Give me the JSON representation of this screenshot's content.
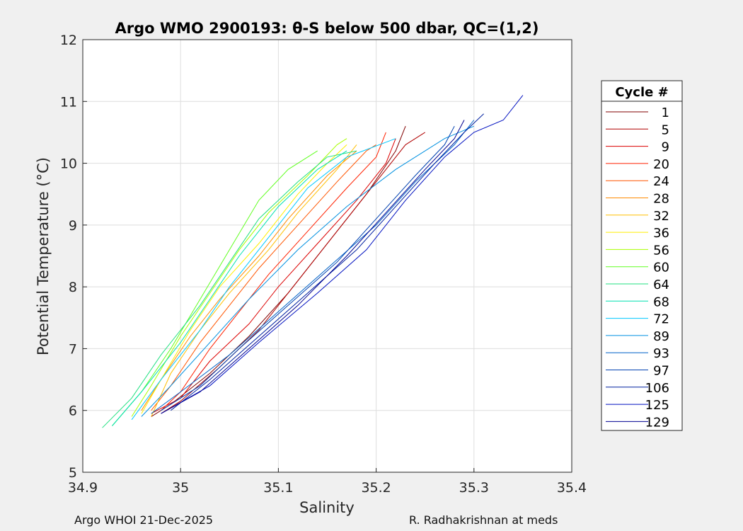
{
  "chart_data": {
    "type": "line",
    "title": "Argo WMO 2900193: θ-S below 500 dbar,  QC=(1,2)",
    "xlabel": "Salinity",
    "ylabel": "Potential Temperature (°C)",
    "xlim": [
      34.9,
      35.4
    ],
    "ylim": [
      5,
      12
    ],
    "xticks": [
      34.9,
      35.0,
      35.1,
      35.2,
      35.3,
      35.4
    ],
    "xtick_labels": [
      "34.9",
      "35",
      "35.1",
      "35.2",
      "35.3",
      "35.4"
    ],
    "yticks": [
      5,
      6,
      7,
      8,
      9,
      10,
      11,
      12
    ],
    "ytick_labels": [
      "5",
      "6",
      "7",
      "8",
      "9",
      "10",
      "11",
      "12"
    ],
    "grid": true,
    "legend_title": "Cycle #",
    "legend_position": "outside-right",
    "series": [
      {
        "name": "1",
        "color": "#800000",
        "points": [
          [
            34.97,
            5.9
          ],
          [
            34.99,
            6.1
          ],
          [
            35.03,
            6.6
          ],
          [
            35.07,
            7.2
          ],
          [
            35.11,
            7.9
          ],
          [
            35.15,
            8.7
          ],
          [
            35.19,
            9.5
          ],
          [
            35.22,
            10.2
          ],
          [
            35.23,
            10.6
          ]
        ]
      },
      {
        "name": "5",
        "color": "#b00000",
        "points": [
          [
            34.98,
            5.95
          ],
          [
            35.0,
            6.15
          ],
          [
            35.04,
            6.7
          ],
          [
            35.08,
            7.3
          ],
          [
            35.12,
            8.1
          ],
          [
            35.16,
            8.9
          ],
          [
            35.2,
            9.7
          ],
          [
            35.23,
            10.3
          ],
          [
            35.25,
            10.5
          ]
        ]
      },
      {
        "name": "9",
        "color": "#dc0000",
        "points": [
          [
            34.97,
            5.95
          ],
          [
            35.0,
            6.2
          ],
          [
            35.03,
            6.8
          ],
          [
            35.07,
            7.4
          ],
          [
            35.1,
            8.0
          ],
          [
            35.14,
            8.7
          ],
          [
            35.18,
            9.4
          ],
          [
            35.21,
            10.0
          ],
          [
            35.22,
            10.4
          ]
        ]
      },
      {
        "name": "20",
        "color": "#ff2000",
        "points": [
          [
            34.98,
            6.0
          ],
          [
            35.0,
            6.3
          ],
          [
            35.03,
            7.0
          ],
          [
            35.06,
            7.6
          ],
          [
            35.09,
            8.2
          ],
          [
            35.13,
            8.9
          ],
          [
            35.17,
            9.6
          ],
          [
            35.2,
            10.1
          ],
          [
            35.21,
            10.5
          ]
        ]
      },
      {
        "name": "24",
        "color": "#ff5500",
        "points": [
          [
            34.97,
            6.0
          ],
          [
            34.99,
            6.4
          ],
          [
            35.02,
            7.1
          ],
          [
            35.05,
            7.7
          ],
          [
            35.08,
            8.3
          ],
          [
            35.12,
            9.0
          ],
          [
            35.16,
            9.7
          ],
          [
            35.19,
            10.2
          ],
          [
            35.2,
            10.3
          ]
        ]
      },
      {
        "name": "28",
        "color": "#ff8a00",
        "points": [
          [
            34.96,
            6.0
          ],
          [
            34.98,
            6.5
          ],
          [
            35.01,
            7.2
          ],
          [
            35.04,
            7.8
          ],
          [
            35.08,
            8.5
          ],
          [
            35.11,
            9.1
          ],
          [
            35.15,
            9.8
          ],
          [
            35.18,
            10.2
          ]
        ]
      },
      {
        "name": "32",
        "color": "#ffbf00",
        "points": [
          [
            34.97,
            5.9
          ],
          [
            34.99,
            6.6
          ],
          [
            35.02,
            7.3
          ],
          [
            35.05,
            7.9
          ],
          [
            35.09,
            8.6
          ],
          [
            35.12,
            9.2
          ],
          [
            35.16,
            9.9
          ],
          [
            35.18,
            10.3
          ]
        ]
      },
      {
        "name": "36",
        "color": "#ffef00",
        "points": [
          [
            34.96,
            5.95
          ],
          [
            34.98,
            6.5
          ],
          [
            35.01,
            7.3
          ],
          [
            35.04,
            8.0
          ],
          [
            35.08,
            8.7
          ],
          [
            35.12,
            9.5
          ],
          [
            35.15,
            10.0
          ],
          [
            35.17,
            10.3
          ]
        ]
      },
      {
        "name": "56",
        "color": "#a8ff00",
        "points": [
          [
            34.95,
            5.9
          ],
          [
            34.97,
            6.4
          ],
          [
            35.0,
            7.2
          ],
          [
            35.03,
            7.9
          ],
          [
            35.06,
            8.6
          ],
          [
            35.09,
            9.2
          ],
          [
            35.13,
            9.8
          ],
          [
            35.16,
            10.3
          ],
          [
            35.17,
            10.4
          ]
        ]
      },
      {
        "name": "60",
        "color": "#60ff20",
        "points": [
          [
            34.93,
            5.75
          ],
          [
            34.96,
            6.3
          ],
          [
            34.99,
            7.0
          ],
          [
            35.02,
            7.8
          ],
          [
            35.05,
            8.6
          ],
          [
            35.08,
            9.4
          ],
          [
            35.11,
            9.9
          ],
          [
            35.14,
            10.2
          ]
        ]
      },
      {
        "name": "64",
        "color": "#20e080",
        "points": [
          [
            34.92,
            5.72
          ],
          [
            34.95,
            6.2
          ],
          [
            34.98,
            6.9
          ],
          [
            35.02,
            7.7
          ],
          [
            35.05,
            8.4
          ],
          [
            35.08,
            9.1
          ],
          [
            35.12,
            9.7
          ],
          [
            35.15,
            10.1
          ],
          [
            35.18,
            10.2
          ]
        ]
      },
      {
        "name": "68",
        "color": "#00e0b0",
        "points": [
          [
            34.93,
            5.75
          ],
          [
            34.96,
            6.3
          ],
          [
            35.0,
            7.1
          ],
          [
            35.03,
            7.8
          ],
          [
            35.06,
            8.5
          ],
          [
            35.1,
            9.3
          ],
          [
            35.14,
            9.9
          ],
          [
            35.17,
            10.2
          ]
        ]
      },
      {
        "name": "72",
        "color": "#00c8ff",
        "points": [
          [
            34.95,
            5.85
          ],
          [
            34.98,
            6.5
          ],
          [
            35.02,
            7.3
          ],
          [
            35.05,
            8.0
          ],
          [
            35.09,
            8.8
          ],
          [
            35.13,
            9.6
          ],
          [
            35.17,
            10.1
          ],
          [
            35.22,
            10.4
          ]
        ]
      },
      {
        "name": "89",
        "color": "#0090e0",
        "points": [
          [
            34.96,
            5.9
          ],
          [
            34.99,
            6.4
          ],
          [
            35.03,
            7.1
          ],
          [
            35.07,
            7.8
          ],
          [
            35.12,
            8.6
          ],
          [
            35.17,
            9.3
          ],
          [
            35.22,
            9.9
          ],
          [
            35.27,
            10.4
          ],
          [
            35.3,
            10.6
          ]
        ]
      },
      {
        "name": "93",
        "color": "#0064c8",
        "points": [
          [
            34.97,
            5.95
          ],
          [
            35.0,
            6.3
          ],
          [
            35.05,
            6.9
          ],
          [
            35.1,
            7.6
          ],
          [
            35.15,
            8.3
          ],
          [
            35.2,
            9.0
          ],
          [
            35.24,
            9.7
          ],
          [
            35.28,
            10.3
          ],
          [
            35.3,
            10.7
          ]
        ]
      },
      {
        "name": "97",
        "color": "#0040b0",
        "points": [
          [
            34.98,
            6.0
          ],
          [
            35.02,
            6.4
          ],
          [
            35.06,
            7.0
          ],
          [
            35.11,
            7.7
          ],
          [
            35.16,
            8.4
          ],
          [
            35.2,
            9.1
          ],
          [
            35.24,
            9.8
          ],
          [
            35.27,
            10.3
          ],
          [
            35.28,
            10.6
          ]
        ]
      },
      {
        "name": "106",
        "color": "#0020a0",
        "points": [
          [
            34.99,
            6.0
          ],
          [
            35.03,
            6.5
          ],
          [
            35.08,
            7.2
          ],
          [
            35.13,
            7.9
          ],
          [
            35.18,
            8.6
          ],
          [
            35.22,
            9.3
          ],
          [
            35.26,
            10.0
          ],
          [
            35.29,
            10.5
          ],
          [
            35.31,
            10.8
          ]
        ]
      },
      {
        "name": "125",
        "color": "#0010c0",
        "points": [
          [
            34.98,
            5.95
          ],
          [
            35.03,
            6.4
          ],
          [
            35.08,
            7.1
          ],
          [
            35.14,
            7.9
          ],
          [
            35.19,
            8.6
          ],
          [
            35.23,
            9.4
          ],
          [
            35.27,
            10.1
          ],
          [
            35.3,
            10.5
          ],
          [
            35.33,
            10.7
          ],
          [
            35.35,
            11.1
          ]
        ]
      },
      {
        "name": "129",
        "color": "#000090",
        "points": [
          [
            34.98,
            5.95
          ],
          [
            35.02,
            6.3
          ],
          [
            35.07,
            7.0
          ],
          [
            35.12,
            7.7
          ],
          [
            35.17,
            8.5
          ],
          [
            35.21,
            9.2
          ],
          [
            35.25,
            9.9
          ],
          [
            35.28,
            10.4
          ],
          [
            35.29,
            10.7
          ]
        ]
      }
    ]
  },
  "footer": {
    "left": "Argo WHOI 21-Dec-2025",
    "right": "R. Radhakrishnan at meds"
  }
}
